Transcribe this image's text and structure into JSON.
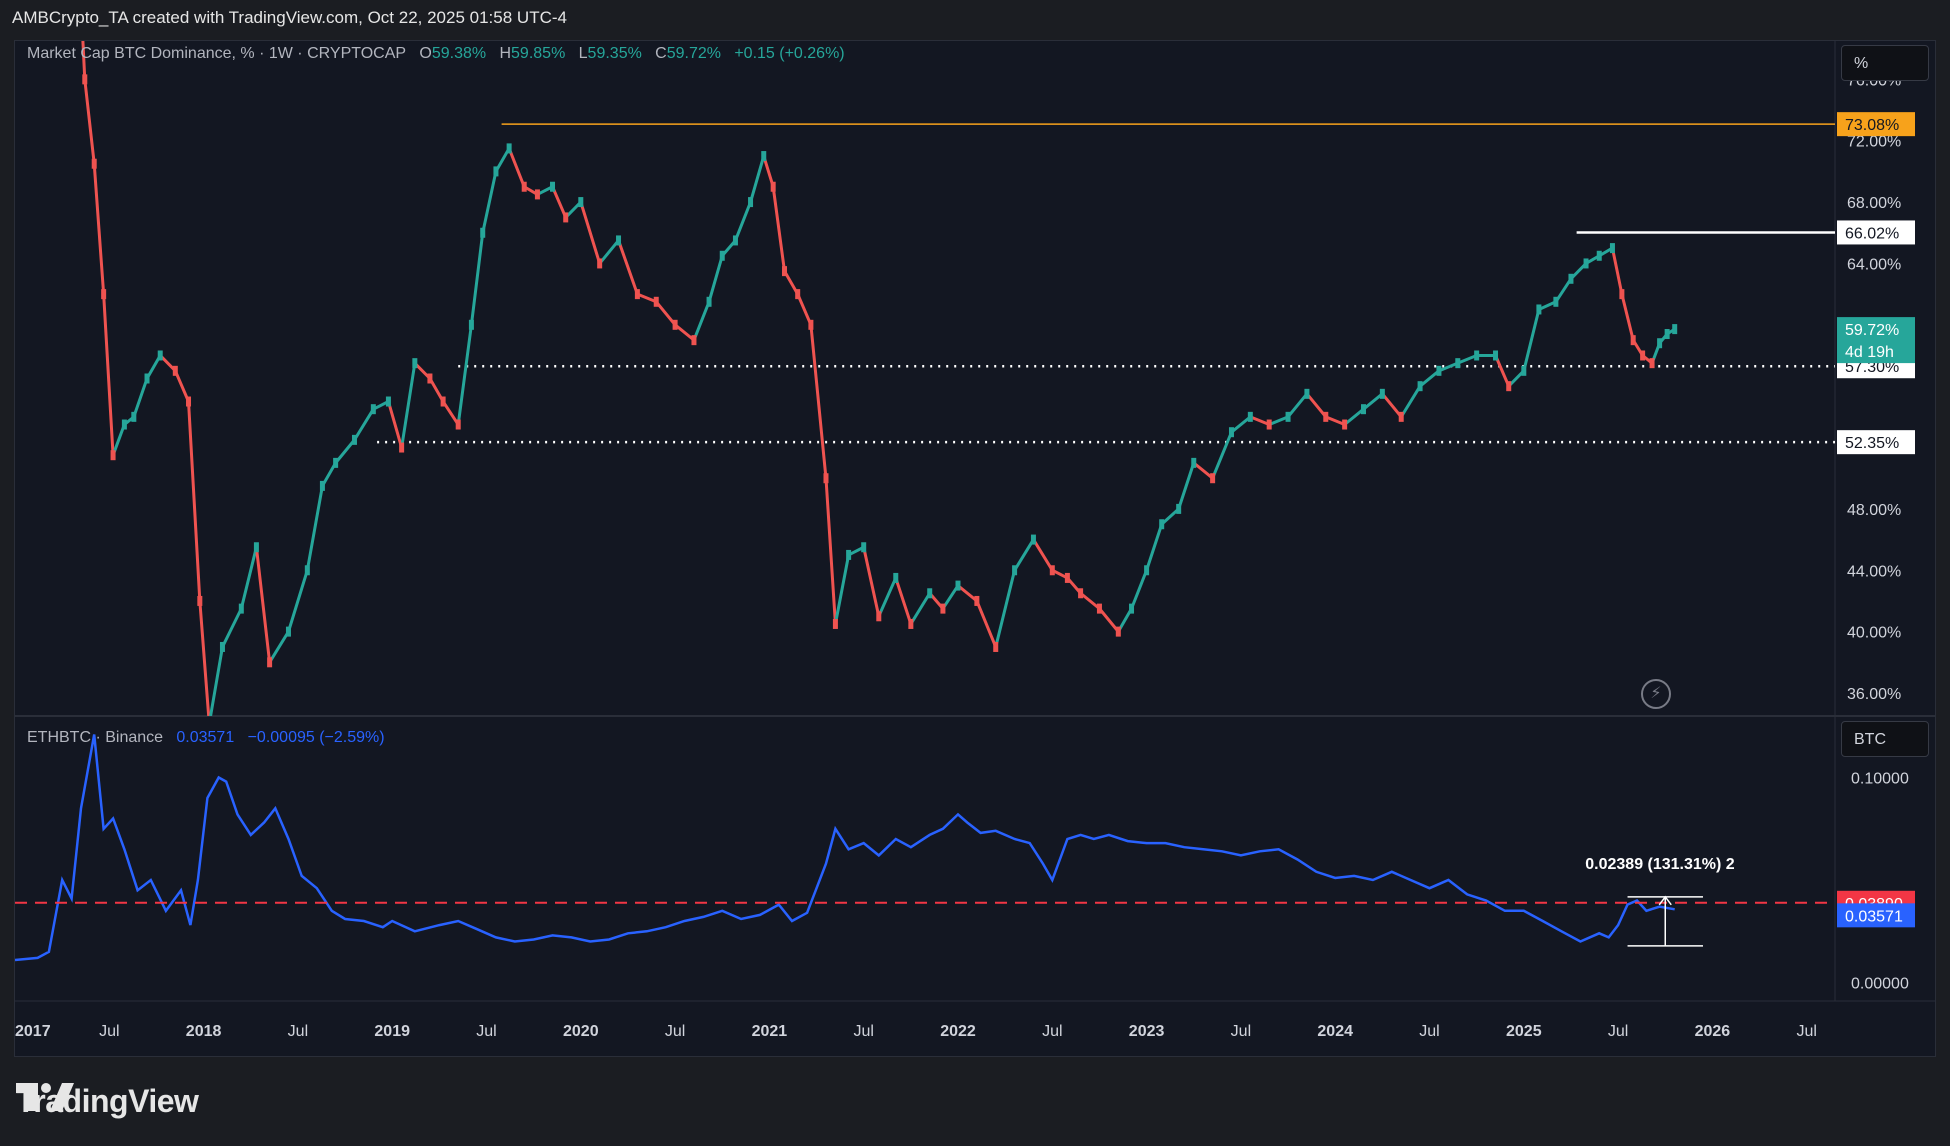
{
  "header": {
    "credit": "AMBCrypto_TA created with TradingView.com, Oct 22, 2025 01:58 UTC-4"
  },
  "main_pane": {
    "symbol": "Market Cap BTC Dominance, % · 1W · CRYPTOCAP",
    "open_label": "O",
    "open": "59.38%",
    "high_label": "H",
    "high": "59.85%",
    "low_label": "L",
    "low": "59.35%",
    "close_label": "C",
    "close": "59.72%",
    "change": "+0.15 (+0.26%)",
    "scale_button": "%"
  },
  "lower_pane": {
    "symbol": "ETHBTC · Binance",
    "value": "0.03571",
    "change": "−0.00095 (−2.59%)",
    "scale_button": "BTC",
    "measure_label": "0.02389 (131.31%) 2"
  },
  "footer": {
    "brand": "TradingView"
  },
  "colors": {
    "background": "#131722",
    "up": "#26a69a",
    "down": "#ef5350",
    "orange": "#f7a21b",
    "blue": "#2962ff",
    "red_label": "#f23645",
    "white": "#ffffff"
  },
  "chart_data": [
    {
      "type": "line",
      "title": "Market Cap BTC Dominance, % · 1W · CRYPTOCAP",
      "note": "weekly candlesticks approximated as a price path",
      "y_unit": "%",
      "ylim": [
        34.5,
        78.5
      ],
      "y_ticks": [
        36,
        40,
        44,
        48,
        64,
        68,
        72,
        76
      ],
      "y_tick_labels": [
        "36.00%",
        "40.00%",
        "44.00%",
        "48.00%",
        "64.00%",
        "68.00%",
        "72.00%",
        "76.00%"
      ],
      "x_tick_labels": [
        "2017",
        "Jul",
        "2018",
        "Jul",
        "2019",
        "Jul",
        "2020",
        "Jul",
        "2021",
        "Jul",
        "2022",
        "Jul",
        "2023",
        "Jul",
        "2024",
        "Jul",
        "2025",
        "Jul",
        "2026",
        "Jul"
      ],
      "x_ticks": [
        2017.0,
        2017.5,
        2018.0,
        2018.5,
        2019.0,
        2019.5,
        2020.0,
        2020.5,
        2021.0,
        2021.5,
        2022.0,
        2022.5,
        2023.0,
        2023.5,
        2024.0,
        2024.5,
        2025.0,
        2025.5,
        2026.0,
        2026.5
      ],
      "xlim": [
        2017.0,
        2026.65
      ],
      "series": [
        {
          "x": [
            2017.33,
            2017.37,
            2017.42,
            2017.47,
            2017.52,
            2017.58,
            2017.63,
            2017.7,
            2017.77,
            2017.85,
            2017.92,
            2017.98,
            2018.03,
            2018.1,
            2018.2,
            2018.28,
            2018.35,
            2018.45,
            2018.55,
            2018.63,
            2018.7,
            2018.8,
            2018.9,
            2018.98,
            2019.05,
            2019.12,
            2019.2,
            2019.27,
            2019.35,
            2019.42,
            2019.48,
            2019.55,
            2019.62,
            2019.7,
            2019.77,
            2019.85,
            2019.92,
            2020.0,
            2020.1,
            2020.2,
            2020.3,
            2020.4,
            2020.5,
            2020.6,
            2020.68,
            2020.75,
            2020.82,
            2020.9,
            2020.97,
            2021.02,
            2021.08,
            2021.15,
            2021.22,
            2021.3,
            2021.35,
            2021.42,
            2021.5,
            2021.58,
            2021.67,
            2021.75,
            2021.85,
            2021.92,
            2022.0,
            2022.1,
            2022.2,
            2022.3,
            2022.4,
            2022.5,
            2022.58,
            2022.65,
            2022.75,
            2022.85,
            2022.92,
            2023.0,
            2023.08,
            2023.17,
            2023.25,
            2023.35,
            2023.45,
            2023.55,
            2023.65,
            2023.75,
            2023.85,
            2023.95,
            2024.05,
            2024.15,
            2024.25,
            2024.35,
            2024.45,
            2024.55,
            2024.65,
            2024.75,
            2024.85,
            2024.92,
            2025.0,
            2025.08,
            2025.17,
            2025.25,
            2025.33,
            2025.4,
            2025.47,
            2025.52,
            2025.58,
            2025.63,
            2025.68,
            2025.72,
            2025.76,
            2025.8
          ],
          "values": [
            86.0,
            76.0,
            70.5,
            62.0,
            51.5,
            53.5,
            54.0,
            56.5,
            58.0,
            57.0,
            55.0,
            42.0,
            34.0,
            39.0,
            41.5,
            45.5,
            38.0,
            40.0,
            44.0,
            49.5,
            51.0,
            52.5,
            54.5,
            55.0,
            52.0,
            57.5,
            56.5,
            55.0,
            53.5,
            60.0,
            66.0,
            70.0,
            71.5,
            69.0,
            68.5,
            69.0,
            67.0,
            68.0,
            64.0,
            65.5,
            62.0,
            61.5,
            60.0,
            59.0,
            61.5,
            64.5,
            65.5,
            68.0,
            71.0,
            69.0,
            63.5,
            62.0,
            60.0,
            50.0,
            40.5,
            45.0,
            45.5,
            41.0,
            43.5,
            40.5,
            42.5,
            41.5,
            43.0,
            42.0,
            39.0,
            44.0,
            46.0,
            44.0,
            43.5,
            42.5,
            41.5,
            40.0,
            41.5,
            44.0,
            47.0,
            48.0,
            51.0,
            50.0,
            53.0,
            54.0,
            53.5,
            54.0,
            55.5,
            54.0,
            53.5,
            54.5,
            55.5,
            54.0,
            56.0,
            57.0,
            57.5,
            58.0,
            58.0,
            56.0,
            57.0,
            61.0,
            61.5,
            63.0,
            64.0,
            64.5,
            65.0,
            62.0,
            59.0,
            58.0,
            57.5,
            58.8,
            59.4,
            59.72
          ]
        }
      ],
      "annotations": {
        "horizontal_levels": [
          {
            "value": 73.08,
            "label": "73.08%",
            "style": "solid",
            "color": "#f7a21b",
            "x_start": 2019.58
          },
          {
            "value": 66.02,
            "label": "66.02%",
            "style": "solid",
            "color": "#ffffff",
            "x_start": 2025.28
          },
          {
            "value": 57.3,
            "label": "57.30%",
            "style": "dotted",
            "color": "#ffffff",
            "x_start": 2019.35
          },
          {
            "value": 52.35,
            "label": "52.35%",
            "style": "dotted",
            "color": "#ffffff",
            "x_start": 2018.92
          }
        ],
        "last_price": {
          "value": 59.72,
          "label": "59.72%",
          "countdown": "4d 19h"
        }
      }
    },
    {
      "type": "line",
      "title": "ETHBTC · Binance",
      "y_unit": "BTC",
      "ylim": [
        -0.009,
        0.13
      ],
      "y_ticks": [
        0.0,
        0.1
      ],
      "y_tick_labels": [
        "0.00000",
        "0.10000"
      ],
      "xlim": [
        2017.0,
        2026.65
      ],
      "series": [
        {
          "x": [
            2017.0,
            2017.12,
            2017.18,
            2017.25,
            2017.3,
            2017.35,
            2017.42,
            2017.47,
            2017.52,
            2017.58,
            2017.65,
            2017.72,
            2017.8,
            2017.88,
            2017.93,
            2017.97,
            2018.02,
            2018.08,
            2018.12,
            2018.18,
            2018.25,
            2018.32,
            2018.38,
            2018.45,
            2018.52,
            2018.6,
            2018.68,
            2018.75,
            2018.85,
            2018.95,
            2019.0,
            2019.12,
            2019.25,
            2019.35,
            2019.45,
            2019.55,
            2019.65,
            2019.75,
            2019.85,
            2019.95,
            2020.05,
            2020.15,
            2020.25,
            2020.35,
            2020.45,
            2020.55,
            2020.65,
            2020.75,
            2020.85,
            2020.95,
            2021.05,
            2021.12,
            2021.2,
            2021.3,
            2021.35,
            2021.42,
            2021.5,
            2021.58,
            2021.67,
            2021.75,
            2021.85,
            2021.92,
            2022.0,
            2022.05,
            2022.12,
            2022.2,
            2022.3,
            2022.38,
            2022.45,
            2022.5,
            2022.58,
            2022.65,
            2022.72,
            2022.8,
            2022.9,
            2023.0,
            2023.1,
            2023.2,
            2023.3,
            2023.4,
            2023.5,
            2023.6,
            2023.7,
            2023.8,
            2023.9,
            2024.0,
            2024.1,
            2024.2,
            2024.3,
            2024.4,
            2024.5,
            2024.6,
            2024.7,
            2024.8,
            2024.9,
            2025.0,
            2025.1,
            2025.2,
            2025.3,
            2025.4,
            2025.45,
            2025.5,
            2025.55,
            2025.6,
            2025.65,
            2025.72,
            2025.8
          ],
          "values": [
            0.011,
            0.012,
            0.015,
            0.05,
            0.041,
            0.085,
            0.121,
            0.075,
            0.08,
            0.065,
            0.045,
            0.05,
            0.035,
            0.045,
            0.028,
            0.05,
            0.09,
            0.1,
            0.098,
            0.082,
            0.072,
            0.078,
            0.085,
            0.07,
            0.052,
            0.046,
            0.035,
            0.031,
            0.03,
            0.027,
            0.03,
            0.025,
            0.028,
            0.03,
            0.026,
            0.022,
            0.02,
            0.021,
            0.023,
            0.022,
            0.02,
            0.021,
            0.024,
            0.025,
            0.027,
            0.03,
            0.032,
            0.035,
            0.031,
            0.033,
            0.038,
            0.03,
            0.034,
            0.058,
            0.075,
            0.065,
            0.068,
            0.062,
            0.07,
            0.066,
            0.072,
            0.075,
            0.082,
            0.078,
            0.073,
            0.074,
            0.07,
            0.068,
            0.058,
            0.05,
            0.07,
            0.072,
            0.07,
            0.072,
            0.069,
            0.068,
            0.068,
            0.066,
            0.065,
            0.064,
            0.062,
            0.064,
            0.065,
            0.06,
            0.054,
            0.051,
            0.052,
            0.05,
            0.054,
            0.05,
            0.046,
            0.05,
            0.043,
            0.04,
            0.035,
            0.035,
            0.03,
            0.025,
            0.02,
            0.024,
            0.022,
            0.028,
            0.038,
            0.04,
            0.035,
            0.037,
            0.03571
          ]
        }
      ],
      "annotations": {
        "horizontal_levels": [
          {
            "value": 0.0389,
            "label": "0.03890",
            "style": "dashed",
            "color": "#f23645"
          }
        ],
        "last_price": {
          "value": 0.03571,
          "label": "0.03571"
        },
        "measure": {
          "x_start": 2025.55,
          "x_end": 2025.95,
          "y_low": 0.0179,
          "y_high": 0.0418,
          "label": "0.02389 (131.31%) 2"
        }
      }
    }
  ]
}
